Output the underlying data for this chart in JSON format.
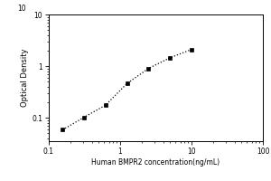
{
  "x_values": [
    0.156,
    0.313,
    0.625,
    1.25,
    2.5,
    5.0,
    10.0
  ],
  "y_values": [
    0.058,
    0.102,
    0.175,
    0.46,
    0.9,
    1.45,
    2.1
  ],
  "xlabel": "Human BMPR2 concentration(ng/mL)",
  "ylabel": "Optical Density",
  "xlim": [
    0.1,
    100
  ],
  "ylim": [
    0.035,
    10
  ],
  "xticks": [
    0.1,
    1,
    10,
    100
  ],
  "xticklabels": [
    "0.1",
    "1",
    "10",
    "100"
  ],
  "yticks": [
    0.1,
    1,
    10
  ],
  "yticklabels": [
    "0.1",
    "1",
    "10"
  ],
  "line_color": "black",
  "marker": "s",
  "marker_color": "black",
  "marker_size": 3.5,
  "line_style": ":",
  "line_width": 0.9,
  "background_color": "#ffffff",
  "xlabel_fontsize": 5.5,
  "ylabel_fontsize": 6,
  "tick_fontsize": 5.5
}
